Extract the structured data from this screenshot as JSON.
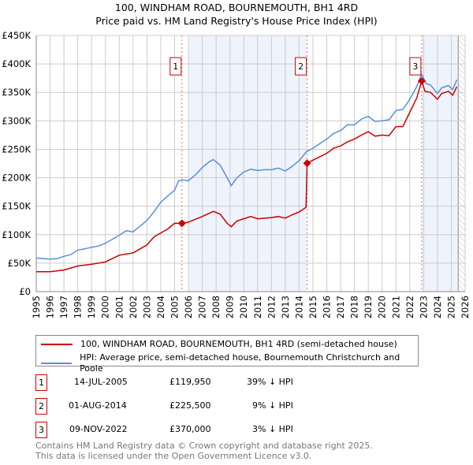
{
  "chart_data": {
    "type": "line",
    "title": "100, WINDHAM ROAD, BOURNEMOUTH, BH1 4RD",
    "subtitle": "Price paid vs. HM Land Registry's House Price Index (HPI)",
    "xlim": [
      1995,
      2026
    ],
    "ylim": [
      0,
      450000
    ],
    "x_ticks": [
      "1995",
      "1996",
      "1997",
      "1998",
      "1999",
      "2000",
      "2001",
      "2002",
      "2003",
      "2004",
      "2005",
      "2006",
      "2007",
      "2008",
      "2009",
      "2010",
      "2011",
      "2012",
      "2013",
      "2014",
      "2015",
      "2016",
      "2017",
      "2018",
      "2019",
      "2020",
      "2021",
      "2022",
      "2023",
      "2024",
      "2025",
      "2026"
    ],
    "y_ticks": [
      {
        "v": 0,
        "label": "£0"
      },
      {
        "v": 50000,
        "label": "£50K"
      },
      {
        "v": 100000,
        "label": "£100K"
      },
      {
        "v": 150000,
        "label": "£150K"
      },
      {
        "v": 200000,
        "label": "£200K"
      },
      {
        "v": 250000,
        "label": "£250K"
      },
      {
        "v": 300000,
        "label": "£300K"
      },
      {
        "v": 350000,
        "label": "£350K"
      },
      {
        "v": 400000,
        "label": "£400K"
      },
      {
        "v": 450000,
        "label": "£450K"
      }
    ],
    "grid": true,
    "legend_placement": "below",
    "series": [
      {
        "name": "100, WINDHAM ROAD, BOURNEMOUTH, BH1 4RD (semi-detached house)",
        "color": "#cc0000",
        "x": [
          1995,
          1996,
          1997,
          1998,
          1999,
          2000,
          2000.5,
          2001,
          2002,
          2002.5,
          2003,
          2003.5,
          2004,
          2004.5,
          2005,
          2005.53,
          2006,
          2007,
          2007.8,
          2008.3,
          2008.8,
          2009.1,
          2009.5,
          2010,
          2010.5,
          2011,
          2012,
          2012.5,
          2013,
          2013.5,
          2014,
          2014.5,
          2014.58,
          2015,
          2016,
          2016.5,
          2017,
          2017.5,
          2018,
          2018.5,
          2019,
          2019.5,
          2020,
          2020.5,
          2021,
          2021.5,
          2022,
          2022.5,
          2022.86,
          2023.1,
          2023.5,
          2024,
          2024.3,
          2024.8,
          2025.1,
          2025.4
        ],
        "y": [
          35,
          35,
          38,
          45,
          48,
          52,
          58,
          64,
          68,
          75,
          82,
          96,
          103,
          110,
          120,
          119.95,
          122,
          132,
          141,
          136,
          120,
          114,
          124,
          128,
          132,
          128,
          130,
          132,
          129,
          135,
          140,
          148,
          225.5,
          231,
          243,
          252,
          256,
          263,
          268,
          275,
          281,
          273,
          275,
          274,
          290,
          290,
          315,
          340,
          370,
          352,
          350,
          338,
          348,
          352,
          345,
          360
        ]
      },
      {
        "name": "HPI: Average price, semi-detached house, Bournemouth Christchurch and Poole",
        "color": "#5b8fd6",
        "x": [
          1995,
          1995.5,
          1996,
          1996.5,
          1997,
          1997.5,
          1998,
          1998.5,
          1999,
          1999.5,
          2000,
          2000.5,
          2001,
          2001.5,
          2002,
          2002.5,
          2003,
          2003.5,
          2004,
          2004.5,
          2005,
          2005.3,
          2005.6,
          2006,
          2006.5,
          2007,
          2007.5,
          2007.8,
          2008.3,
          2008.8,
          2009.1,
          2009.5,
          2010,
          2010.5,
          2011,
          2011.5,
          2012,
          2012.5,
          2013,
          2013.5,
          2014,
          2014.5,
          2015,
          2015.5,
          2016,
          2016.5,
          2017,
          2017.5,
          2018,
          2018.5,
          2019,
          2019.5,
          2020,
          2020.5,
          2021,
          2021.5,
          2022,
          2022.5,
          2022.85,
          2023.2,
          2023.5,
          2024,
          2024.3,
          2024.8,
          2025.1,
          2025.4
        ],
        "y": [
          59,
          58,
          57,
          58,
          62,
          65,
          73,
          75,
          78,
          80,
          85,
          92,
          99,
          107,
          105,
          115,
          125,
          140,
          157,
          168,
          178,
          195,
          196,
          195,
          205,
          218,
          228,
          232,
          222,
          200,
          186,
          200,
          210,
          215,
          213,
          214,
          214,
          217,
          212,
          220,
          230,
          245,
          252,
          260,
          268,
          278,
          283,
          293,
          293,
          303,
          308,
          299,
          300,
          302,
          318,
          320,
          338,
          360,
          382,
          365,
          363,
          348,
          358,
          362,
          355,
          372
        ]
      }
    ],
    "y_unit_multiplier": 1000,
    "sales": [
      {
        "id": "1",
        "x": 2005.53,
        "date": "14-JUL-2005",
        "price": "£119,950",
        "value": 119950,
        "hpi": "39% ↓ HPI"
      },
      {
        "id": "2",
        "x": 2014.58,
        "date": "01-AUG-2014",
        "price": "£225,500",
        "value": 225500,
        "hpi": "9% ↓ HPI"
      },
      {
        "id": "3",
        "x": 2022.86,
        "date": "09-NOV-2022",
        "price": "£370,000",
        "value": 370000,
        "hpi": "3% ↓ HPI"
      }
    ]
  },
  "footer": {
    "line1": "Contains HM Land Registry data © Crown copyright and database right 2025.",
    "line2": "This data is licensed under the Open Government Licence v3.0."
  }
}
